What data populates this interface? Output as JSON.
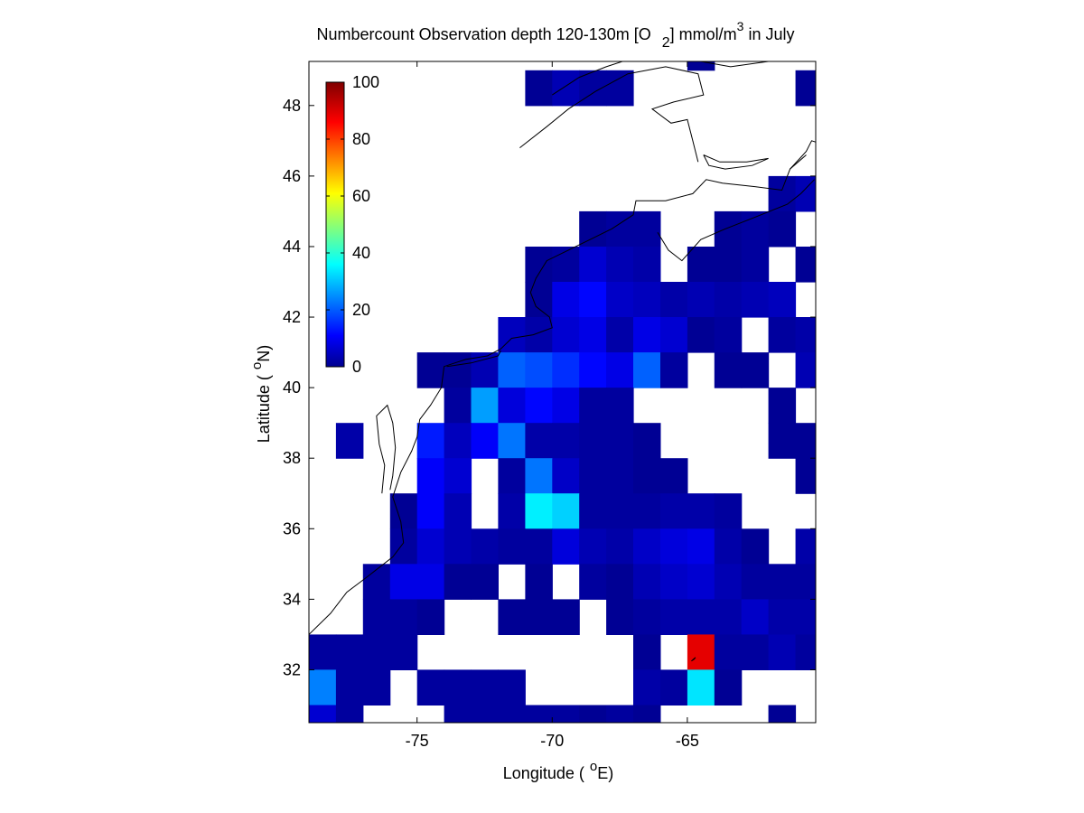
{
  "figure": {
    "background": "#ffffff",
    "title": "Numbercount Observation depth 120-130m [O",
    "title_sub": "2",
    "title_mid": "] mmol/m",
    "title_sup": "3",
    "title_end": " in July"
  },
  "chart_data": {
    "type": "heatmap",
    "xlabel_prefix": "Longitude (",
    "xlabel_unit_sup": "o",
    "xlabel_unit": "E)",
    "ylabel_prefix": "Latitude (",
    "ylabel_unit_sup": "o",
    "ylabel_unit": "N)",
    "xlim": [
      -79,
      -60.25
    ],
    "ylim": [
      30.5,
      49.25
    ],
    "x_ticks": [
      -75,
      -70,
      -65
    ],
    "x_tick_labels": [
      "-75",
      "-70",
      "-65"
    ],
    "y_ticks": [
      32,
      34,
      36,
      38,
      40,
      42,
      44,
      46,
      48
    ],
    "y_tick_labels": [
      "32",
      "34",
      "36",
      "38",
      "40",
      "42",
      "44",
      "46",
      "48"
    ],
    "colormap": "jet",
    "clim": [
      0,
      100
    ],
    "colorbar": {
      "placement": "inside-top-left",
      "ticks": [
        0,
        20,
        40,
        60,
        80,
        100
      ],
      "tick_labels": [
        "0",
        "20",
        "40",
        "60",
        "80",
        "100"
      ]
    },
    "cell_size_deg": 1.0,
    "cells": [
      {
        "lon": -70.5,
        "lat": 48.5,
        "v": 2
      },
      {
        "lon": -69.5,
        "lat": 48.5,
        "v": 5
      },
      {
        "lon": -68.5,
        "lat": 48.5,
        "v": 3
      },
      {
        "lon": -67.5,
        "lat": 48.5,
        "v": 3
      },
      {
        "lon": -60.5,
        "lat": 48.5,
        "v": 2
      },
      {
        "lon": -61.5,
        "lat": 45.5,
        "v": 3
      },
      {
        "lon": -60.5,
        "lat": 45.5,
        "v": 5
      },
      {
        "lon": -68.5,
        "lat": 44.5,
        "v": 2
      },
      {
        "lon": -67.5,
        "lat": 44.5,
        "v": 3
      },
      {
        "lon": -66.5,
        "lat": 44.5,
        "v": 3
      },
      {
        "lon": -63.5,
        "lat": 44.5,
        "v": 2
      },
      {
        "lon": -62.5,
        "lat": 44.5,
        "v": 3
      },
      {
        "lon": -61.5,
        "lat": 44.5,
        "v": 2
      },
      {
        "lon": -70.5,
        "lat": 43.5,
        "v": 2
      },
      {
        "lon": -69.5,
        "lat": 43.5,
        "v": 3
      },
      {
        "lon": -68.5,
        "lat": 43.5,
        "v": 8
      },
      {
        "lon": -67.5,
        "lat": 43.5,
        "v": 5
      },
      {
        "lon": -66.5,
        "lat": 43.5,
        "v": 4
      },
      {
        "lon": -64.5,
        "lat": 43.5,
        "v": 2
      },
      {
        "lon": -63.5,
        "lat": 43.5,
        "v": 2
      },
      {
        "lon": -62.5,
        "lat": 43.5,
        "v": 3
      },
      {
        "lon": -60.5,
        "lat": 43.5,
        "v": 2
      },
      {
        "lon": -70.5,
        "lat": 42.5,
        "v": 2
      },
      {
        "lon": -69.5,
        "lat": 42.5,
        "v": 10
      },
      {
        "lon": -68.5,
        "lat": 42.5,
        "v": 13
      },
      {
        "lon": -67.5,
        "lat": 42.5,
        "v": 7
      },
      {
        "lon": -66.5,
        "lat": 42.5,
        "v": 6
      },
      {
        "lon": -65.5,
        "lat": 42.5,
        "v": 4
      },
      {
        "lon": -64.5,
        "lat": 42.5,
        "v": 5
      },
      {
        "lon": -63.5,
        "lat": 42.5,
        "v": 4
      },
      {
        "lon": -62.5,
        "lat": 42.5,
        "v": 5
      },
      {
        "lon": -61.5,
        "lat": 42.5,
        "v": 6
      },
      {
        "lon": -71.5,
        "lat": 41.5,
        "v": 6
      },
      {
        "lon": -70.5,
        "lat": 41.5,
        "v": 4
      },
      {
        "lon": -69.5,
        "lat": 41.5,
        "v": 8
      },
      {
        "lon": -68.5,
        "lat": 41.5,
        "v": 10
      },
      {
        "lon": -67.5,
        "lat": 41.5,
        "v": 4
      },
      {
        "lon": -66.5,
        "lat": 41.5,
        "v": 10
      },
      {
        "lon": -65.5,
        "lat": 41.5,
        "v": 8
      },
      {
        "lon": -64.5,
        "lat": 41.5,
        "v": 2
      },
      {
        "lon": -63.5,
        "lat": 41.5,
        "v": 3
      },
      {
        "lon": -61.5,
        "lat": 41.5,
        "v": 3
      },
      {
        "lon": -60.5,
        "lat": 41.5,
        "v": 4
      },
      {
        "lon": -74.5,
        "lat": 40.5,
        "v": 2
      },
      {
        "lon": -73.5,
        "lat": 40.5,
        "v": 2
      },
      {
        "lon": -72.5,
        "lat": 40.5,
        "v": 5
      },
      {
        "lon": -71.5,
        "lat": 40.5,
        "v": 22
      },
      {
        "lon": -70.5,
        "lat": 40.5,
        "v": 20
      },
      {
        "lon": -69.5,
        "lat": 40.5,
        "v": 17
      },
      {
        "lon": -68.5,
        "lat": 40.5,
        "v": 13
      },
      {
        "lon": -67.5,
        "lat": 40.5,
        "v": 10
      },
      {
        "lon": -66.5,
        "lat": 40.5,
        "v": 22
      },
      {
        "lon": -65.5,
        "lat": 40.5,
        "v": 3
      },
      {
        "lon": -63.5,
        "lat": 40.5,
        "v": 2
      },
      {
        "lon": -62.5,
        "lat": 40.5,
        "v": 2
      },
      {
        "lon": -60.5,
        "lat": 40.5,
        "v": 5
      },
      {
        "lon": -73.5,
        "lat": 39.5,
        "v": 3
      },
      {
        "lon": -72.5,
        "lat": 39.5,
        "v": 28
      },
      {
        "lon": -71.5,
        "lat": 39.5,
        "v": 9
      },
      {
        "lon": -70.5,
        "lat": 39.5,
        "v": 13
      },
      {
        "lon": -69.5,
        "lat": 39.5,
        "v": 10
      },
      {
        "lon": -68.5,
        "lat": 39.5,
        "v": 3
      },
      {
        "lon": -67.5,
        "lat": 39.5,
        "v": 3
      },
      {
        "lon": -61.5,
        "lat": 39.5,
        "v": 2
      },
      {
        "lon": -77.5,
        "lat": 38.5,
        "v": 4
      },
      {
        "lon": -74.5,
        "lat": 38.5,
        "v": 15
      },
      {
        "lon": -73.5,
        "lat": 38.5,
        "v": 6
      },
      {
        "lon": -72.5,
        "lat": 38.5,
        "v": 12
      },
      {
        "lon": -71.5,
        "lat": 38.5,
        "v": 24
      },
      {
        "lon": -70.5,
        "lat": 38.5,
        "v": 4
      },
      {
        "lon": -69.5,
        "lat": 38.5,
        "v": 4
      },
      {
        "lon": -68.5,
        "lat": 38.5,
        "v": 3
      },
      {
        "lon": -67.5,
        "lat": 38.5,
        "v": 3
      },
      {
        "lon": -66.5,
        "lat": 38.5,
        "v": 2
      },
      {
        "lon": -61.5,
        "lat": 38.5,
        "v": 2
      },
      {
        "lon": -60.5,
        "lat": 38.5,
        "v": 2
      },
      {
        "lon": -74.5,
        "lat": 37.5,
        "v": 12
      },
      {
        "lon": -73.5,
        "lat": 37.5,
        "v": 8
      },
      {
        "lon": -71.5,
        "lat": 37.5,
        "v": 3
      },
      {
        "lon": -70.5,
        "lat": 37.5,
        "v": 24
      },
      {
        "lon": -69.5,
        "lat": 37.5,
        "v": 7
      },
      {
        "lon": -68.5,
        "lat": 37.5,
        "v": 3
      },
      {
        "lon": -67.5,
        "lat": 37.5,
        "v": 3
      },
      {
        "lon": -66.5,
        "lat": 37.5,
        "v": 2
      },
      {
        "lon": -65.5,
        "lat": 37.5,
        "v": 2
      },
      {
        "lon": -60.5,
        "lat": 37.5,
        "v": 2
      },
      {
        "lon": -75.5,
        "lat": 36.5,
        "v": 2
      },
      {
        "lon": -74.5,
        "lat": 36.5,
        "v": 12
      },
      {
        "lon": -73.5,
        "lat": 36.5,
        "v": 5
      },
      {
        "lon": -71.5,
        "lat": 36.5,
        "v": 4
      },
      {
        "lon": -70.5,
        "lat": 36.5,
        "v": 36
      },
      {
        "lon": -69.5,
        "lat": 36.5,
        "v": 33
      },
      {
        "lon": -68.5,
        "lat": 36.5,
        "v": 3
      },
      {
        "lon": -67.5,
        "lat": 36.5,
        "v": 3
      },
      {
        "lon": -66.5,
        "lat": 36.5,
        "v": 3
      },
      {
        "lon": -65.5,
        "lat": 36.5,
        "v": 4
      },
      {
        "lon": -64.5,
        "lat": 36.5,
        "v": 4
      },
      {
        "lon": -63.5,
        "lat": 36.5,
        "v": 3
      },
      {
        "lon": -75.5,
        "lat": 35.5,
        "v": 3
      },
      {
        "lon": -74.5,
        "lat": 35.5,
        "v": 8
      },
      {
        "lon": -73.5,
        "lat": 35.5,
        "v": 5
      },
      {
        "lon": -72.5,
        "lat": 35.5,
        "v": 4
      },
      {
        "lon": -71.5,
        "lat": 35.5,
        "v": 3
      },
      {
        "lon": -70.5,
        "lat": 35.5,
        "v": 3
      },
      {
        "lon": -69.5,
        "lat": 35.5,
        "v": 9
      },
      {
        "lon": -68.5,
        "lat": 35.5,
        "v": 5
      },
      {
        "lon": -67.5,
        "lat": 35.5,
        "v": 4
      },
      {
        "lon": -66.5,
        "lat": 35.5,
        "v": 7
      },
      {
        "lon": -65.5,
        "lat": 35.5,
        "v": 9
      },
      {
        "lon": -64.5,
        "lat": 35.5,
        "v": 10
      },
      {
        "lon": -63.5,
        "lat": 35.5,
        "v": 4
      },
      {
        "lon": -62.5,
        "lat": 35.5,
        "v": 2
      },
      {
        "lon": -60.5,
        "lat": 35.5,
        "v": 4
      },
      {
        "lon": -76.5,
        "lat": 34.5,
        "v": 3
      },
      {
        "lon": -75.5,
        "lat": 34.5,
        "v": 10
      },
      {
        "lon": -74.5,
        "lat": 34.5,
        "v": 10
      },
      {
        "lon": -73.5,
        "lat": 34.5,
        "v": 2
      },
      {
        "lon": -72.5,
        "lat": 34.5,
        "v": 2
      },
      {
        "lon": -70.5,
        "lat": 34.5,
        "v": 2
      },
      {
        "lon": -68.5,
        "lat": 34.5,
        "v": 3
      },
      {
        "lon": -67.5,
        "lat": 34.5,
        "v": 2
      },
      {
        "lon": -66.5,
        "lat": 34.5,
        "v": 5
      },
      {
        "lon": -65.5,
        "lat": 34.5,
        "v": 7
      },
      {
        "lon": -64.5,
        "lat": 34.5,
        "v": 8
      },
      {
        "lon": -63.5,
        "lat": 34.5,
        "v": 5
      },
      {
        "lon": -62.5,
        "lat": 34.5,
        "v": 3
      },
      {
        "lon": -61.5,
        "lat": 34.5,
        "v": 3
      },
      {
        "lon": -60.5,
        "lat": 34.5,
        "v": 3
      },
      {
        "lon": -76.5,
        "lat": 33.5,
        "v": 3
      },
      {
        "lon": -75.5,
        "lat": 33.5,
        "v": 3
      },
      {
        "lon": -74.5,
        "lat": 33.5,
        "v": 2
      },
      {
        "lon": -71.5,
        "lat": 33.5,
        "v": 2
      },
      {
        "lon": -70.5,
        "lat": 33.5,
        "v": 2
      },
      {
        "lon": -69.5,
        "lat": 33.5,
        "v": 2
      },
      {
        "lon": -67.5,
        "lat": 33.5,
        "v": 2
      },
      {
        "lon": -66.5,
        "lat": 33.5,
        "v": 3
      },
      {
        "lon": -65.5,
        "lat": 33.5,
        "v": 4
      },
      {
        "lon": -64.5,
        "lat": 33.5,
        "v": 4
      },
      {
        "lon": -63.5,
        "lat": 33.5,
        "v": 4
      },
      {
        "lon": -62.5,
        "lat": 33.5,
        "v": 7
      },
      {
        "lon": -61.5,
        "lat": 33.5,
        "v": 4
      },
      {
        "lon": -60.5,
        "lat": 33.5,
        "v": 4
      },
      {
        "lon": -78.5,
        "lat": 32.5,
        "v": 3
      },
      {
        "lon": -77.5,
        "lat": 32.5,
        "v": 3
      },
      {
        "lon": -76.5,
        "lat": 32.5,
        "v": 3
      },
      {
        "lon": -75.5,
        "lat": 32.5,
        "v": 3
      },
      {
        "lon": -66.5,
        "lat": 32.5,
        "v": 2
      },
      {
        "lon": -64.5,
        "lat": 32.5,
        "v": 90
      },
      {
        "lon": -63.5,
        "lat": 32.5,
        "v": 3
      },
      {
        "lon": -62.5,
        "lat": 32.5,
        "v": 3
      },
      {
        "lon": -61.5,
        "lat": 32.5,
        "v": 5
      },
      {
        "lon": -60.5,
        "lat": 32.5,
        "v": 3
      },
      {
        "lon": -78.5,
        "lat": 31.5,
        "v": 25
      },
      {
        "lon": -77.5,
        "lat": 31.5,
        "v": 3
      },
      {
        "lon": -76.5,
        "lat": 31.5,
        "v": 3
      },
      {
        "lon": -74.5,
        "lat": 31.5,
        "v": 3
      },
      {
        "lon": -73.5,
        "lat": 31.5,
        "v": 3
      },
      {
        "lon": -72.5,
        "lat": 31.5,
        "v": 3
      },
      {
        "lon": -71.5,
        "lat": 31.5,
        "v": 3
      },
      {
        "lon": -66.5,
        "lat": 31.5,
        "v": 4
      },
      {
        "lon": -65.5,
        "lat": 31.5,
        "v": 3
      },
      {
        "lon": -64.5,
        "lat": 31.5,
        "v": 35
      },
      {
        "lon": -63.5,
        "lat": 31.5,
        "v": 2
      },
      {
        "lon": -78.5,
        "lat": 30.5,
        "v": 8
      },
      {
        "lon": -77.5,
        "lat": 30.5,
        "v": 3
      },
      {
        "lon": -73.5,
        "lat": 30.5,
        "v": 3
      },
      {
        "lon": -72.5,
        "lat": 30.5,
        "v": 3
      },
      {
        "lon": -71.5,
        "lat": 30.5,
        "v": 3
      },
      {
        "lon": -70.5,
        "lat": 30.5,
        "v": 3
      },
      {
        "lon": -69.5,
        "lat": 30.5,
        "v": 3
      },
      {
        "lon": -68.5,
        "lat": 30.5,
        "v": 2
      },
      {
        "lon": -67.5,
        "lat": 30.5,
        "v": 3
      },
      {
        "lon": -66.5,
        "lat": 30.5,
        "v": 2
      },
      {
        "lon": -61.5,
        "lat": 30.5,
        "v": 2
      },
      {
        "lon": -64.5,
        "lat": 49.5,
        "v": 2
      }
    ],
    "coastline_color": "#000000"
  }
}
